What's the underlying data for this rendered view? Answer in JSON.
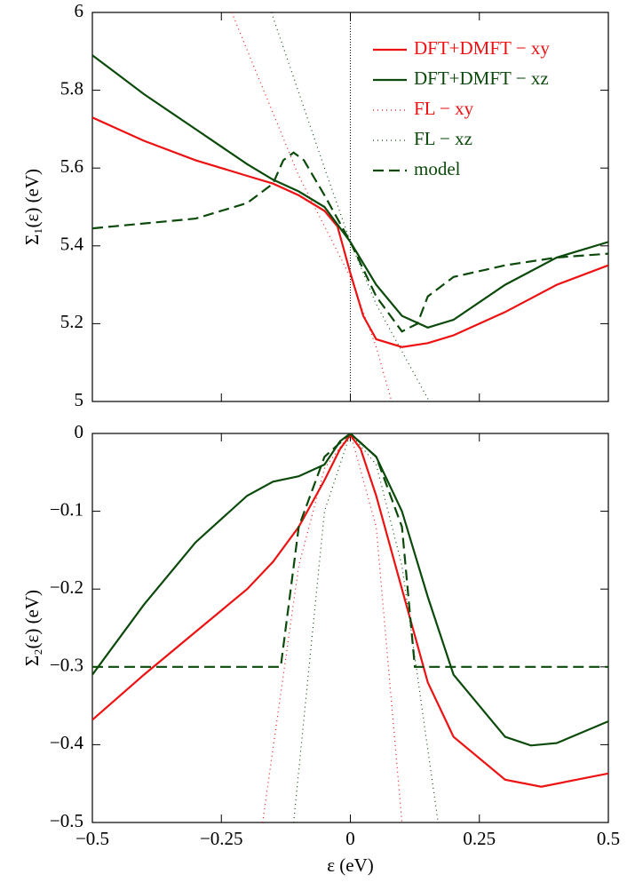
{
  "chart_data": [
    {
      "type": "line",
      "ylabel": "Σ₁(ε)  (eV)",
      "xlim": [
        -0.5,
        0.5
      ],
      "ylim": [
        5,
        6
      ],
      "xticks": [
        -0.5,
        -0.25,
        0,
        0.25,
        0.5
      ],
      "yticks": [
        5,
        5.2,
        5.4,
        5.6,
        5.8,
        6
      ],
      "vline": 0,
      "legend": "upper right",
      "series": [
        {
          "name": "DFT+DMFT − xy",
          "color": "#ee1111",
          "style": "solid",
          "x": [
            -0.5,
            -0.4,
            -0.3,
            -0.2,
            -0.15,
            -0.1,
            -0.05,
            -0.025,
            0,
            0.025,
            0.05,
            0.1,
            0.15,
            0.2,
            0.3,
            0.4,
            0.5
          ],
          "values": [
            5.73,
            5.67,
            5.62,
            5.58,
            5.56,
            5.53,
            5.49,
            5.45,
            5.33,
            5.22,
            5.16,
            5.14,
            5.15,
            5.17,
            5.23,
            5.3,
            5.35
          ]
        },
        {
          "name": "DFT+DMFT − xz",
          "color": "#0b4a0b",
          "style": "solid",
          "x": [
            -0.5,
            -0.4,
            -0.3,
            -0.2,
            -0.15,
            -0.1,
            -0.05,
            0,
            0.05,
            0.1,
            0.15,
            0.2,
            0.3,
            0.4,
            0.5
          ],
          "values": [
            5.89,
            5.79,
            5.7,
            5.61,
            5.57,
            5.54,
            5.5,
            5.41,
            5.3,
            5.22,
            5.19,
            5.21,
            5.3,
            5.37,
            5.41
          ]
        },
        {
          "name": "FL − xy",
          "color": "#ee1111",
          "style": "dotted",
          "x": [
            -0.23,
            -0.1,
            0,
            0.05,
            0.08
          ],
          "values": [
            6,
            5.58,
            5.32,
            5.14,
            5
          ]
        },
        {
          "name": "FL − xz",
          "color": "#0b4a0b",
          "style": "dotted",
          "x": [
            -0.153,
            -0.05,
            0,
            0.05,
            0.153
          ],
          "values": [
            6,
            5.6,
            5.41,
            5.25,
            5
          ]
        },
        {
          "name": "model",
          "color": "#0b4a0b",
          "style": "dashed",
          "x": [
            -0.5,
            -0.3,
            -0.2,
            -0.15,
            -0.13,
            -0.11,
            -0.09,
            -0.05,
            0,
            0.05,
            0.1,
            0.13,
            0.15,
            0.2,
            0.3,
            0.4,
            0.5
          ],
          "values": [
            5.445,
            5.47,
            5.51,
            5.56,
            5.62,
            5.64,
            5.62,
            5.53,
            5.41,
            5.27,
            5.18,
            5.2,
            5.27,
            5.32,
            5.35,
            5.37,
            5.38
          ]
        }
      ]
    },
    {
      "type": "line",
      "ylabel": "Σ₂(ε)  (eV)",
      "xlabel": "ε (eV)",
      "xlim": [
        -0.5,
        0.5
      ],
      "ylim": [
        -0.5,
        0
      ],
      "xticks": [
        {
          "value": -0.5,
          "label": "−0.5"
        },
        {
          "value": -0.25,
          "label": "−0.25"
        },
        0,
        0.25,
        0.5
      ],
      "yticks": [
        {
          "value": -0.5,
          "label": "−0.5"
        },
        {
          "value": -0.4,
          "label": "−0.4"
        },
        {
          "value": -0.3,
          "label": "−0.3"
        },
        {
          "value": -0.2,
          "label": "−0.2"
        },
        {
          "value": -0.1,
          "label": "−0.1"
        },
        0
      ],
      "series": [
        {
          "color": "#ee1111",
          "style": "solid",
          "x": [
            -0.5,
            -0.4,
            -0.3,
            -0.2,
            -0.15,
            -0.1,
            -0.05,
            -0.02,
            0,
            0.02,
            0.05,
            0.1,
            0.15,
            0.2,
            0.3,
            0.37,
            0.5
          ],
          "values": [
            -0.368,
            -0.31,
            -0.255,
            -0.2,
            -0.165,
            -0.12,
            -0.06,
            -0.02,
            -0.002,
            -0.02,
            -0.08,
            -0.2,
            -0.32,
            -0.39,
            -0.445,
            -0.454,
            -0.437
          ]
        },
        {
          "color": "#0b4a0b",
          "style": "solid",
          "x": [
            -0.5,
            -0.4,
            -0.3,
            -0.2,
            -0.15,
            -0.1,
            -0.05,
            -0.02,
            0,
            0.05,
            0.1,
            0.15,
            0.2,
            0.3,
            0.35,
            0.4,
            0.5
          ],
          "values": [
            -0.31,
            -0.22,
            -0.14,
            -0.08,
            -0.062,
            -0.055,
            -0.04,
            -0.01,
            0,
            -0.03,
            -0.1,
            -0.21,
            -0.31,
            -0.39,
            -0.401,
            -0.398,
            -0.37
          ]
        },
        {
          "color": "#ee1111",
          "style": "dotted",
          "x": [
            -0.17,
            -0.1,
            -0.05,
            0,
            0.05,
            0.1
          ],
          "values": [
            -0.5,
            -0.17,
            -0.045,
            0,
            -0.12,
            -0.5
          ]
        },
        {
          "color": "#0b4a0b",
          "style": "dotted",
          "x": [
            -0.11,
            -0.05,
            0,
            0.05,
            0.1,
            0.17
          ],
          "values": [
            -0.5,
            -0.1,
            0,
            -0.04,
            -0.17,
            -0.5
          ]
        },
        {
          "color": "#0b4a0b",
          "style": "dashed",
          "x": [
            -0.5,
            -0.135,
            -0.1,
            -0.05,
            0,
            0.05,
            0.1,
            0.125,
            0.5
          ],
          "values": [
            -0.3,
            -0.3,
            -0.12,
            -0.03,
            0,
            -0.03,
            -0.12,
            -0.3,
            -0.3
          ]
        }
      ]
    }
  ]
}
